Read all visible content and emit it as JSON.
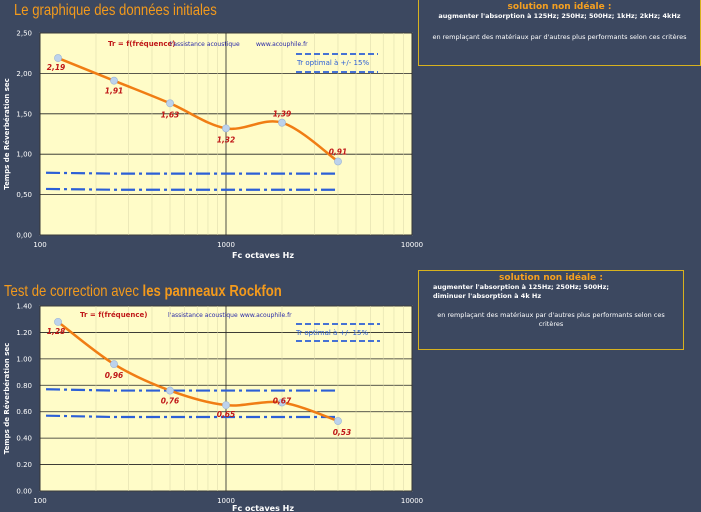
{
  "section1": {
    "title": "Le graphique des données initiales",
    "note": {
      "title": "solution non idéale :",
      "lines": [
        "augmenter l'absorption à 125Hz; 250Hz; 500Hz; 1kHz; 2kHz; 4kHz"
      ],
      "text": "en remplaçant des matériaux par d'autres plus performants selon ces critères"
    }
  },
  "section2": {
    "title_prefix": "Test de correction avec ",
    "title_bold": "les panneaux Rockfon",
    "note": {
      "title": "solution non idéale :",
      "lines": [
        "augmenter l'absorption à 125Hz; 250Hz; 500Hz;",
        "diminuer l'absorption à 4k Hz"
      ],
      "text": "en remplaçant des matériaux par d'autres plus performants selon ces critères"
    }
  },
  "colors": {
    "background": "#3c4860",
    "plot_area": "#fffcc8",
    "title": "#f39a1c",
    "curve": "#f07d14",
    "band": "#2c5fd6",
    "data_label": "#c01818",
    "note_border": "#d8b21e"
  },
  "chart_data": [
    {
      "type": "line",
      "xscale": "log",
      "xlim": [
        100,
        10000
      ],
      "ylim": [
        0,
        2.5
      ],
      "grid": true,
      "x_ticks": [
        "100",
        "1000",
        "10000"
      ],
      "y_ticks": [
        "0,00",
        "0,50",
        "1,00",
        "1,50",
        "2,00",
        "2,50"
      ],
      "xlabel": "Fc octaves  Hz",
      "ylabel": "Temps de Réverbération sec",
      "annotations": [
        "l'assistance acoustique",
        "www.acouphile.fr"
      ],
      "series": [
        {
          "name": "Tr = f(fréquence)",
          "x": [
            125,
            250,
            500,
            1000,
            2000,
            4000
          ],
          "values": [
            2.19,
            1.91,
            1.63,
            1.32,
            1.39,
            0.91
          ],
          "labels": [
            "2,19",
            "1,91",
            "1,63",
            "1,32",
            "1,39",
            "0,91"
          ]
        },
        {
          "name": "Tr optimal à +/- 15%",
          "x": [
            125,
            250,
            500,
            1000,
            2000,
            4000
          ],
          "upper": [
            0.77,
            0.76,
            0.76,
            0.76,
            0.76,
            0.76
          ],
          "lower": [
            0.57,
            0.56,
            0.56,
            0.56,
            0.56,
            0.56
          ]
        }
      ]
    },
    {
      "type": "line",
      "xscale": "log",
      "xlim": [
        100,
        10000
      ],
      "ylim": [
        0,
        1.4
      ],
      "grid": true,
      "x_ticks": [
        "100",
        "1000",
        "10000"
      ],
      "y_ticks": [
        "0.00",
        "0.20",
        "0.40",
        "0.60",
        "0.80",
        "1.00",
        "1.20",
        "1.40"
      ],
      "xlabel": "Fc octaves  Hz",
      "ylabel": "Temps de Réverbération sec",
      "annotations": [
        "l'assistance acoustique",
        "www.acouphile.fr"
      ],
      "series": [
        {
          "name": "Tr = f(fréquence)",
          "x": [
            125,
            250,
            500,
            1000,
            2000,
            4000
          ],
          "values": [
            1.28,
            0.96,
            0.76,
            0.65,
            0.67,
            0.53
          ],
          "labels": [
            "1,28",
            "0,96",
            "0,76",
            "0,65",
            "0,67",
            "0,53"
          ]
        },
        {
          "name": "Tr optimal à +/- 15%",
          "x": [
            125,
            250,
            500,
            1000,
            2000,
            4000
          ],
          "upper": [
            0.77,
            0.76,
            0.76,
            0.76,
            0.76,
            0.76
          ],
          "lower": [
            0.57,
            0.56,
            0.56,
            0.56,
            0.56,
            0.56
          ]
        }
      ]
    }
  ]
}
